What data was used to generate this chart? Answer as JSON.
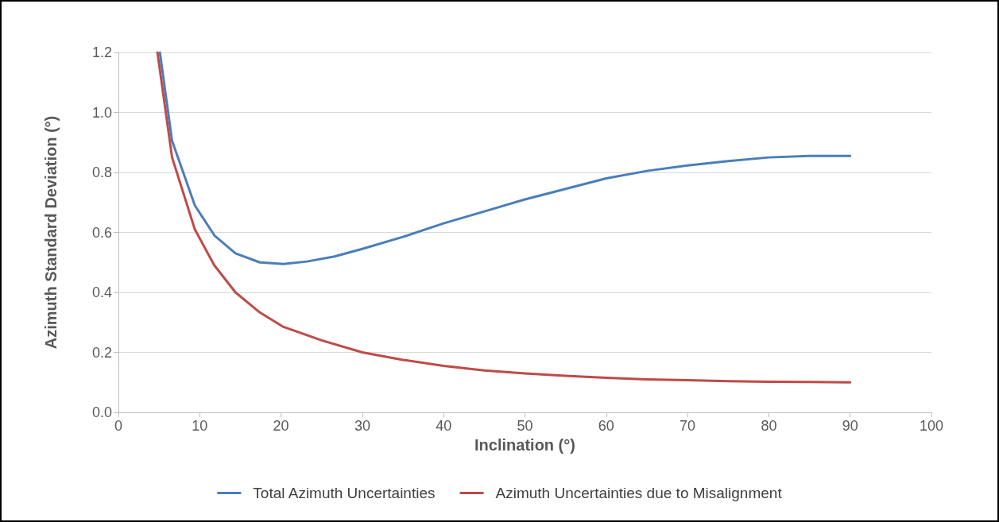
{
  "chart_data": {
    "type": "line",
    "xlabel": "Inclination (°)",
    "ylabel": "Azimuth Standard Deviation (°)",
    "xlim": [
      0,
      100
    ],
    "xticks": [
      0,
      10,
      20,
      30,
      40,
      50,
      60,
      70,
      80,
      90,
      100
    ],
    "ylim": [
      0,
      1.2
    ],
    "yticks": [
      {
        "value": 0,
        "label": "0.0"
      },
      {
        "value": 0.2,
        "label": "0.2"
      },
      {
        "value": 0.4,
        "label": "0.4"
      },
      {
        "value": 0.6,
        "label": "0.6"
      },
      {
        "value": 0.8,
        "label": "0.8"
      },
      {
        "value": 1,
        "label": "1.0"
      },
      {
        "value": 1.2,
        "label": "1.2"
      }
    ],
    "grid": "y",
    "legend": "bottom",
    "marker": "none",
    "line_style": "solid",
    "series": [
      {
        "name": "Total Azimuth Uncertainties",
        "color": "#4a7ebb",
        "x": [
          5.1,
          6.6,
          9.4,
          11.8,
          14.4,
          17.4,
          20.3,
          23.2,
          26.6,
          30,
          35,
          40,
          45,
          50,
          55,
          60,
          65,
          70,
          75,
          80,
          85,
          90
        ],
        "values": [
          1.2,
          0.905,
          0.69,
          0.59,
          0.53,
          0.5,
          0.495,
          0.503,
          0.52,
          0.545,
          0.585,
          0.63,
          0.67,
          0.71,
          0.745,
          0.78,
          0.805,
          0.823,
          0.838,
          0.85,
          0.855,
          0.855
        ]
      },
      {
        "name": "Azimuth Uncertainties due to Misalignment",
        "color": "#be4b48",
        "x": [
          4.8,
          6.6,
          9.4,
          11.8,
          14.4,
          17.4,
          20.3,
          25,
          30,
          35,
          40,
          45,
          50,
          55,
          60,
          65,
          70,
          75,
          80,
          85,
          90
        ],
        "values": [
          1.2,
          0.85,
          0.61,
          0.49,
          0.4,
          0.333,
          0.285,
          0.24,
          0.2,
          0.175,
          0.155,
          0.14,
          0.13,
          0.122,
          0.115,
          0.11,
          0.107,
          0.104,
          0.102,
          0.101,
          0.1
        ]
      }
    ]
  }
}
